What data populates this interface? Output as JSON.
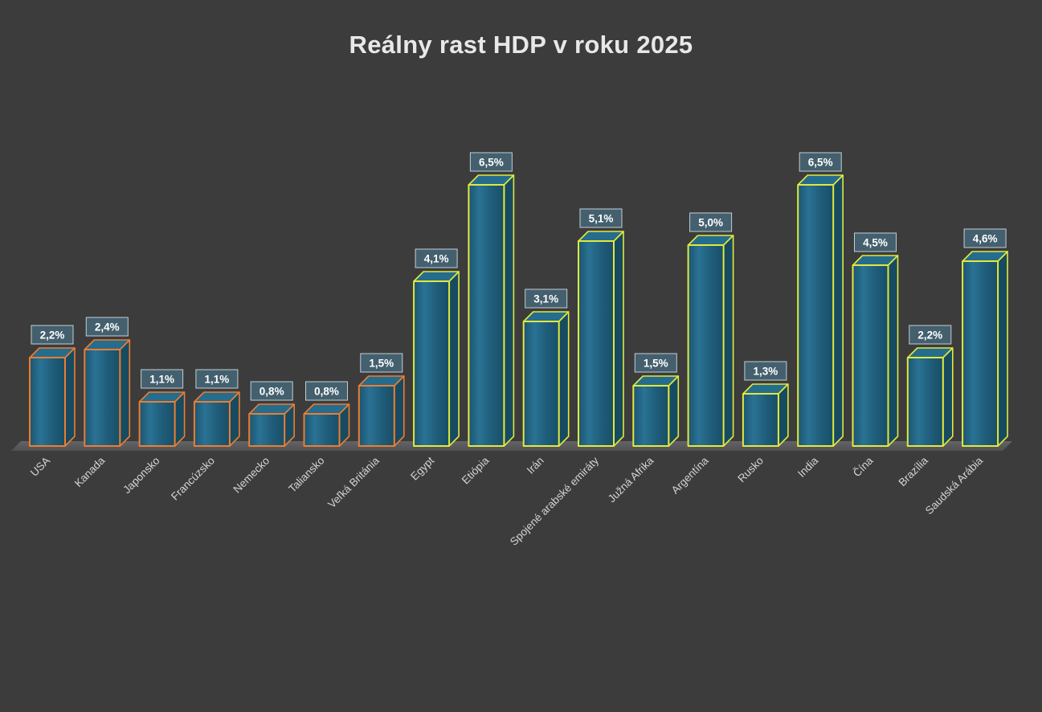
{
  "chart_data": {
    "type": "bar",
    "style": "3d-column",
    "title": "Reálny rast HDP v roku 2025",
    "categories": [
      "USA",
      "Kanada",
      "Japonsko",
      "Francúzsko",
      "Nemecko",
      "Taliansko",
      "Veľká Británia",
      "Egypt",
      "Etiópia",
      "Irán",
      "Spojené arabské emiráty",
      "Južná Afrika",
      "Argentína",
      "Rusko",
      "India",
      "Čína",
      "Brazília",
      "Saudská Arábia"
    ],
    "values": [
      2.2,
      2.4,
      1.1,
      1.1,
      0.8,
      0.8,
      1.5,
      4.1,
      6.5,
      3.1,
      5.1,
      1.5,
      5.0,
      1.3,
      6.5,
      4.5,
      2.2,
      4.6
    ],
    "value_labels": [
      "2,2%",
      "2,4%",
      "1,1%",
      "1,1%",
      "0,8%",
      "0,8%",
      "1,5%",
      "4,1%",
      "6,5%",
      "3,1%",
      "5,1%",
      "1,5%",
      "5,0%",
      "1,3%",
      "6,5%",
      "4,5%",
      "2,2%",
      "4,6%"
    ],
    "outline_groups": [
      "orange",
      "orange",
      "orange",
      "orange",
      "orange",
      "orange",
      "orange",
      "yellow",
      "yellow",
      "yellow",
      "yellow",
      "yellow",
      "yellow",
      "yellow",
      "yellow",
      "yellow",
      "yellow",
      "yellow"
    ],
    "ylim": [
      0,
      7
    ],
    "xlabel": "",
    "ylabel": "",
    "grid": false,
    "legend": "none"
  },
  "colors": {
    "background": "#3c3c3c",
    "bar_front": "#1f5d7a",
    "bar_front_light": "#2a7294",
    "bar_front_dark": "#184e66",
    "bar_top": "#266c8d",
    "bar_side": "#174b61",
    "outline_orange": "#ed7d31",
    "outline_yellow": "#e2e93b",
    "value_box_fill": "#44606e",
    "value_box_border": "#c2ced4",
    "value_text": "#ffffff",
    "title_color": "#e8e8e8",
    "axis_label_color": "#d4d4d4",
    "floor_light": "#646467",
    "floor_dark": "#505053"
  }
}
